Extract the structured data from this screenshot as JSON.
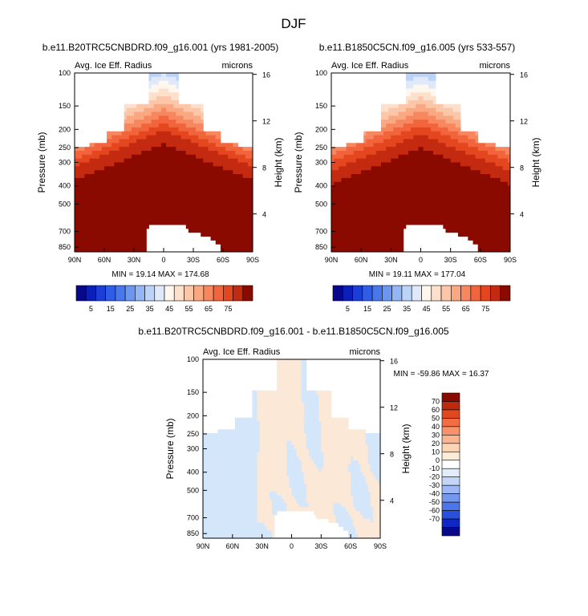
{
  "figure": {
    "title": "DJF"
  },
  "colors": {
    "abs_levels": [
      "#08088c",
      "#0a1fb8",
      "#1a3ed6",
      "#2f5de6",
      "#4878ec",
      "#6c97f0",
      "#94b6f4",
      "#bcd3f8",
      "#dfe9fa",
      "#fff6ee",
      "#fde0cc",
      "#fbc7a8",
      "#f9a882",
      "#f7875e",
      "#f2653c",
      "#e4461f",
      "#c42a10",
      "#8b0a00"
    ],
    "diff_levels": [
      "#08088c",
      "#0f27c4",
      "#2a50e0",
      "#4d75ea",
      "#7598ef",
      "#9db8f4",
      "#c4d6f8",
      "#e2ecfb",
      "#ffffff",
      "#fdebd9",
      "#fbd4b4",
      "#f9b58f",
      "#f7926a",
      "#f26c44",
      "#e0481f",
      "#bb2a0e",
      "#8b0a00"
    ],
    "diff_neg_fill": "#d4e6fa",
    "diff_pos_fill": "#fbe8d6"
  },
  "chart_data": [
    {
      "type": "heatmap",
      "title": "b.e11.B20TRC5CNBDRD.f09_g16.001 (yrs 1981-2005)",
      "subtitle": "Avg. Ice Eff. Radius",
      "units": "microns",
      "xlabel": "",
      "ylabel": "Pressure (mb)",
      "y2label": "Height (km)",
      "x_ticks": [
        "90N",
        "60N",
        "30N",
        "0",
        "30S",
        "60S",
        "90S"
      ],
      "y_ticks": [
        100,
        150,
        200,
        250,
        300,
        400,
        500,
        700,
        850
      ],
      "y2_ticks": [
        4,
        8,
        12,
        16
      ],
      "ylim": [
        900,
        100
      ],
      "xlim": [
        90,
        -90
      ],
      "y_scale": "log",
      "stats": "MIN = 19.14   MAX = 174.68",
      "colorbar_labels": [
        "5",
        "15",
        "25",
        "35",
        "45",
        "55",
        "65",
        "75"
      ]
    },
    {
      "type": "heatmap",
      "title": "b.e11.B1850C5CN.f09_g16.005 (yrs 533-557)",
      "subtitle": "Avg. Ice Eff. Radius",
      "units": "microns",
      "xlabel": "",
      "ylabel": "Pressure (mb)",
      "y2label": "Height (km)",
      "x_ticks": [
        "90N",
        "60N",
        "30N",
        "0",
        "30S",
        "60S",
        "90S"
      ],
      "y_ticks": [
        100,
        150,
        200,
        250,
        300,
        400,
        500,
        700,
        850
      ],
      "y2_ticks": [
        4,
        8,
        12,
        16
      ],
      "ylim": [
        900,
        100
      ],
      "xlim": [
        90,
        -90
      ],
      "y_scale": "log",
      "stats": "MIN = 19.11   MAX = 177.04",
      "colorbar_labels": [
        "5",
        "15",
        "25",
        "35",
        "45",
        "55",
        "65",
        "75"
      ]
    },
    {
      "type": "heatmap",
      "title": "b.e11.B20TRC5CNBDRD.f09_g16.001 - b.e11.B1850C5CN.f09_g16.005",
      "subtitle": "Avg. Ice Eff. Radius",
      "units": "microns",
      "xlabel": "",
      "ylabel": "Pressure (mb)",
      "y2label": "Height (km)",
      "x_ticks": [
        "90N",
        "60N",
        "30N",
        "0",
        "30S",
        "60S",
        "90S"
      ],
      "y_ticks": [
        100,
        150,
        200,
        250,
        300,
        400,
        500,
        700,
        850
      ],
      "y2_ticks": [
        4,
        8,
        12,
        16
      ],
      "ylim": [
        900,
        100
      ],
      "xlim": [
        90,
        -90
      ],
      "y_scale": "log",
      "stats": "MIN = -59.86  MAX = 16.37",
      "colorbar_labels": [
        "70",
        "60",
        "50",
        "40",
        "30",
        "20",
        "10",
        "0",
        "-10",
        "-20",
        "-30",
        "-40",
        "-50",
        "-60",
        "-70"
      ]
    }
  ]
}
